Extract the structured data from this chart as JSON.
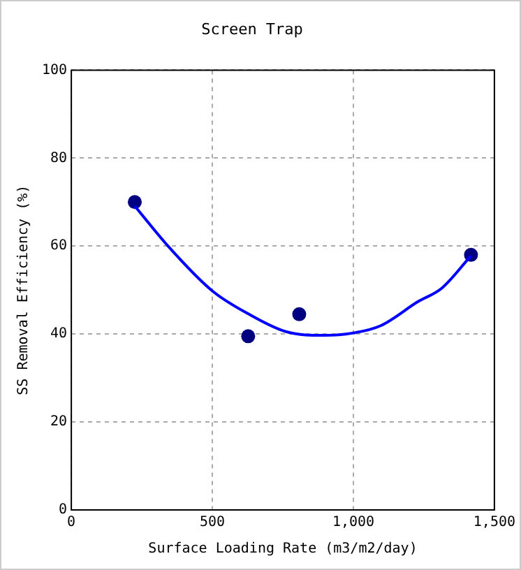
{
  "chart_data": {
    "type": "scatter",
    "title": "Screen Trap",
    "xlabel": "Surface Loading Rate (m3/m2/day)",
    "ylabel": "SS Removal Efficiency (%)",
    "xlim": [
      0,
      1500
    ],
    "xticks": [
      0,
      500,
      {
        "value": 1000,
        "label": "1,000"
      },
      {
        "value": 1500,
        "label": "1,500"
      }
    ],
    "ylim": [
      0,
      100
    ],
    "yticks": [
      0,
      20,
      40,
      60,
      80,
      100
    ],
    "grid": true,
    "legend": false,
    "series": [
      {
        "type": "line",
        "color": "#0000ff",
        "marker": "none",
        "x": [
          225,
          347,
          500,
          630,
          763,
          897,
          997,
          1097,
          1230,
          1313,
          1417
        ],
        "values": [
          69.1,
          59.7,
          49.8,
          44.5,
          40.5,
          39.7,
          40.2,
          41.9,
          47.4,
          50.4,
          57.8
        ]
      },
      {
        "color": "#000080",
        "marker": "circle",
        "x": [
          225,
          627,
          808,
          1417
        ],
        "values": [
          70,
          39.5,
          44.5,
          58
        ]
      }
    ]
  }
}
